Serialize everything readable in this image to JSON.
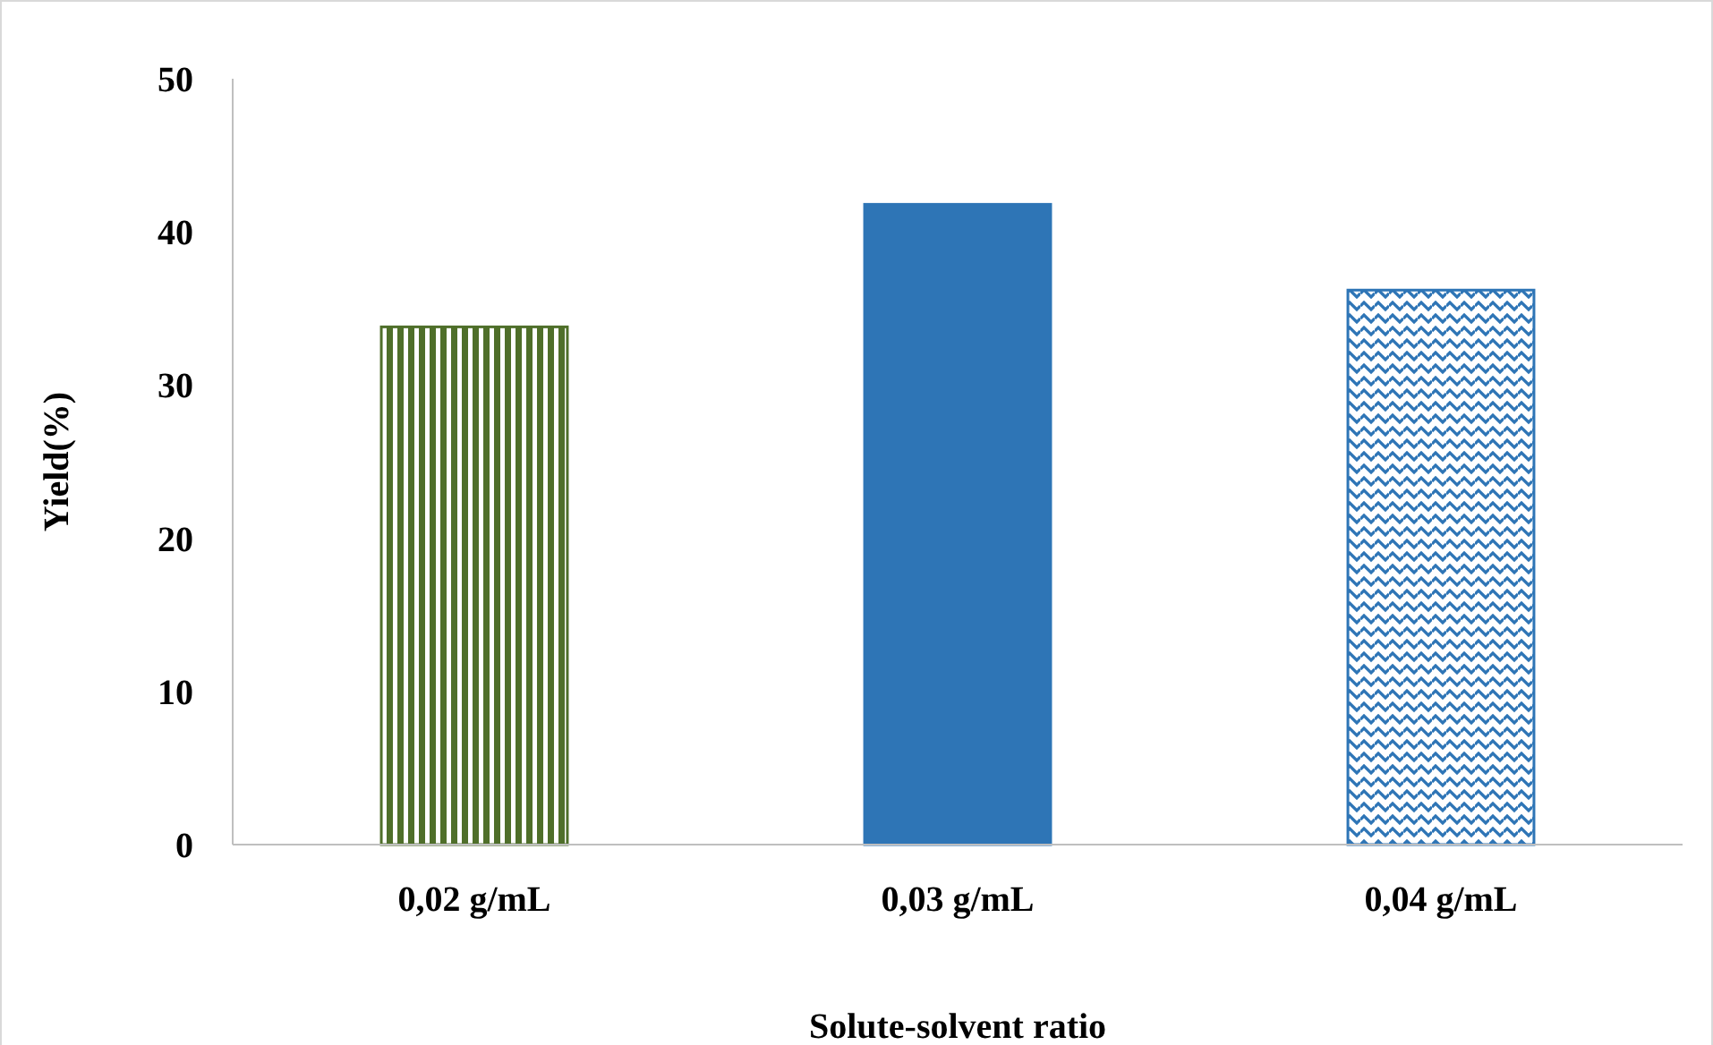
{
  "chart_data": {
    "type": "bar",
    "categories": [
      "0,02 g/mL",
      "0,03 g/mL",
      "0,04 g/mL"
    ],
    "values": [
      33.8,
      41.8,
      36.2
    ],
    "colors": [
      "#4f6f2a",
      "#2e75b6",
      "#2e75b6"
    ],
    "ylim": [
      0,
      50
    ],
    "yticks": [
      0,
      10,
      20,
      30,
      40,
      50
    ],
    "xlabel": "Solute-solvent ratio",
    "ylabel": "Yield(%)"
  }
}
